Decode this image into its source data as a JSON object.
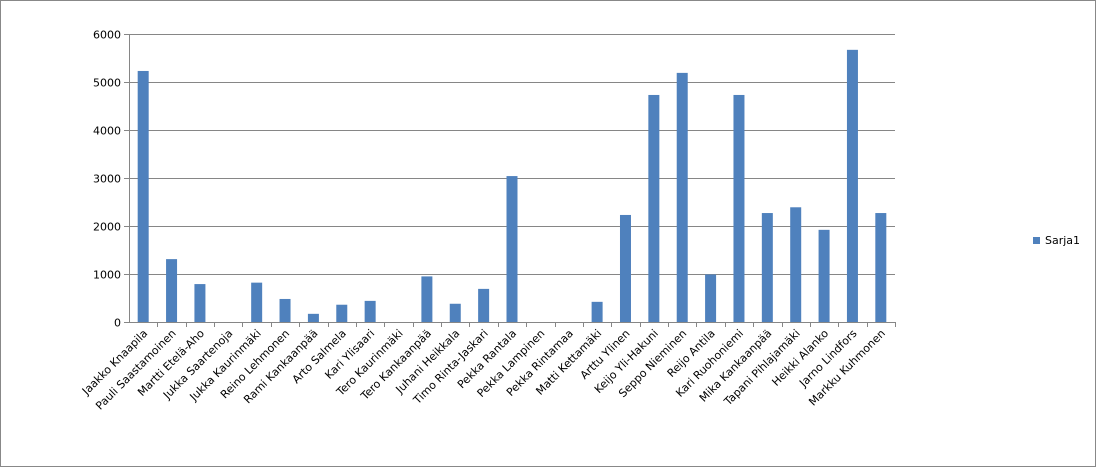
{
  "chart_data": {
    "type": "bar",
    "categories": [
      "Jaakko Knaapila",
      "Pauli Saastamoinen",
      "Martti Etelä-Aho",
      "Jukka Saartenoja",
      "Jukka Kaurinmäki",
      "Reino Lehmonen",
      "Rami Kankaanpää",
      "Arto Salmela",
      "Kari Ylisaari",
      "Tero Kaurinmäki",
      "Tero Kankaanpää",
      "Juhani Heikkala",
      "Timo Rinta-Jaskari",
      "Pekka Rantala",
      "Pekka Lampinen",
      "Pekka Rintamaa",
      "Matti Kettamäki",
      "Arttu Ylinen",
      "Keijo Yli-Hakuni",
      "Seppo Nieminen",
      "Reijo Antila",
      "Kari Ruohoniemi",
      "Mika Kankaanpää",
      "Tapani Pihlajamäki",
      "Heikki Alanko",
      "Jarno Lindfors",
      "Markku Kuhmonen"
    ],
    "series": [
      {
        "name": "Sarja1",
        "color": "#4f81bd",
        "values": [
          5230,
          1310,
          790,
          0,
          820,
          480,
          170,
          360,
          440,
          0,
          950,
          380,
          690,
          3040,
          0,
          0,
          420,
          2230,
          4730,
          5190,
          990,
          4730,
          2270,
          2390,
          1920,
          5670,
          2270
        ]
      }
    ],
    "ylim": [
      0,
      6000
    ],
    "yticks": [
      "0",
      "1000",
      "2000",
      "3000",
      "4000",
      "5000",
      "6000"
    ],
    "grid": true,
    "legend_position": "right",
    "title": "",
    "xlabel": "",
    "ylabel": ""
  }
}
